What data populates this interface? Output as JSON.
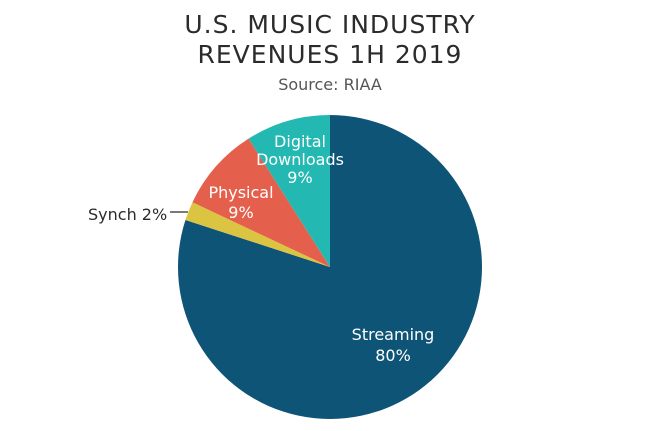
{
  "title_line1": "U.S. MUSIC INDUSTRY",
  "title_line2": "REVENUES 1H 2019",
  "subtitle": "Source: RIAA",
  "chart_data": {
    "type": "pie",
    "title": "U.S. MUSIC INDUSTRY REVENUES 1H 2019",
    "subtitle": "Source: RIAA",
    "start_angle_deg": 0,
    "direction": "clockwise",
    "slices": [
      {
        "name": "Streaming",
        "label_lines": [
          "Streaming",
          "80%"
        ],
        "value": 80,
        "color": "#0e5476",
        "label_position": "inside"
      },
      {
        "name": "Synch",
        "label_lines": [
          "Synch 2%"
        ],
        "value": 2,
        "color": "#dcc443",
        "label_position": "outside"
      },
      {
        "name": "Physical",
        "label_lines": [
          "Physical",
          "9%"
        ],
        "value": 9,
        "color": "#e5604c",
        "label_position": "inside"
      },
      {
        "name": "Digital Downloads",
        "label_lines": [
          "Digital",
          "Downloads",
          "9%"
        ],
        "value": 9,
        "color": "#23b8b1",
        "label_position": "inside"
      }
    ]
  }
}
